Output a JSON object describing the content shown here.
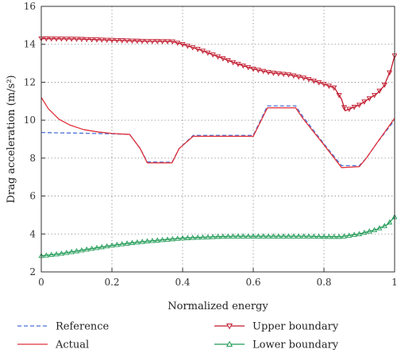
{
  "chart_data": {
    "type": "line",
    "xlabel": "Normalized energy",
    "ylabel": "Drag acceleration (m/s²)",
    "xlim": [
      0,
      1
    ],
    "ylim": [
      2,
      16
    ],
    "xticks": [
      0,
      0.2,
      0.4,
      0.6,
      0.8,
      1
    ],
    "yticks": [
      2,
      4,
      6,
      8,
      10,
      12,
      14,
      16
    ],
    "xtick_labels": [
      "0",
      "0.2",
      "0.4",
      "0.6",
      "0.8",
      "1"
    ],
    "ytick_labels": [
      "2",
      "4",
      "6",
      "8",
      "10",
      "12",
      "14",
      "16"
    ],
    "grid": "dotted",
    "legend_position": "bottom",
    "series": [
      {
        "name": "Reference",
        "color": "#4a6fd8",
        "style": "dashed",
        "marker": "none",
        "x": [
          0,
          0.05,
          0.1,
          0.15,
          0.2,
          0.25,
          0.28,
          0.3,
          0.37,
          0.39,
          0.43,
          0.6,
          0.64,
          0.72,
          0.74,
          0.8,
          0.85,
          0.9,
          0.92,
          0.95,
          1.0
        ],
        "y": [
          9.35,
          9.33,
          9.32,
          9.3,
          9.28,
          9.25,
          8.5,
          7.8,
          7.78,
          8.5,
          9.2,
          9.2,
          10.75,
          10.75,
          10.2,
          8.75,
          7.6,
          7.6,
          8.0,
          8.8,
          10.0
        ]
      },
      {
        "name": "Actual",
        "color": "#e0313a",
        "style": "solid",
        "marker": "none",
        "x": [
          0,
          0.02,
          0.05,
          0.08,
          0.12,
          0.16,
          0.2,
          0.25,
          0.28,
          0.3,
          0.37,
          0.39,
          0.43,
          0.6,
          0.64,
          0.72,
          0.74,
          0.8,
          0.85,
          0.9,
          0.92,
          0.95,
          1.0
        ],
        "y": [
          11.2,
          10.6,
          10.05,
          9.75,
          9.5,
          9.38,
          9.3,
          9.25,
          8.5,
          7.75,
          7.75,
          8.5,
          9.15,
          9.15,
          10.65,
          10.65,
          10.1,
          8.7,
          7.5,
          7.55,
          8.0,
          8.8,
          10.1
        ]
      },
      {
        "name": "Upper boundary",
        "color": "#c0172b",
        "style": "solid",
        "marker": "triangle-down",
        "x": [
          0,
          0.1,
          0.2,
          0.3,
          0.37,
          0.4,
          0.45,
          0.5,
          0.55,
          0.6,
          0.65,
          0.7,
          0.75,
          0.8,
          0.83,
          0.85,
          0.86,
          0.9,
          0.95,
          0.97,
          0.99,
          1.0
        ],
        "y": [
          14.3,
          14.28,
          14.22,
          14.16,
          14.15,
          14.0,
          13.7,
          13.35,
          13.0,
          12.7,
          12.5,
          12.4,
          12.2,
          11.9,
          11.7,
          11.1,
          10.5,
          10.8,
          11.4,
          11.8,
          12.7,
          13.4
        ]
      },
      {
        "name": "Lower boundary",
        "color": "#1f9a55",
        "style": "solid",
        "marker": "triangle-up",
        "x": [
          0,
          0.05,
          0.1,
          0.15,
          0.2,
          0.25,
          0.3,
          0.35,
          0.4,
          0.45,
          0.5,
          0.55,
          0.6,
          0.65,
          0.7,
          0.75,
          0.8,
          0.85,
          0.9,
          0.95,
          0.98,
          1.0
        ],
        "y": [
          2.85,
          2.95,
          3.1,
          3.25,
          3.4,
          3.52,
          3.62,
          3.7,
          3.78,
          3.82,
          3.86,
          3.88,
          3.88,
          3.88,
          3.88,
          3.88,
          3.86,
          3.86,
          4.0,
          4.25,
          4.5,
          4.9
        ]
      }
    ]
  }
}
